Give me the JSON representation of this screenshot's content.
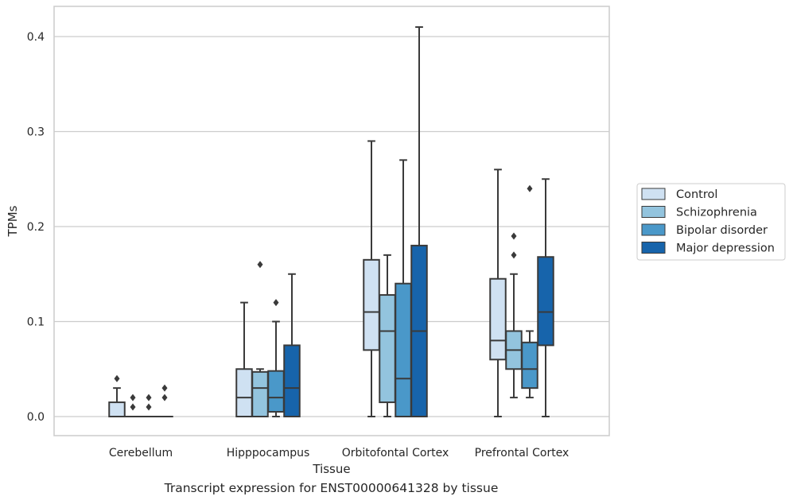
{
  "caption": "Transcript expression for ENST00000641328 by tissue",
  "chart_data": {
    "type": "box",
    "title": "",
    "xlabel": "Tissue",
    "ylabel": "TPMs",
    "ylim": [
      -0.02,
      0.43
    ],
    "yticks": [
      0.0,
      0.1,
      0.2,
      0.3,
      0.4
    ],
    "ytick_labels": [
      "0.0",
      "0.1",
      "0.2",
      "0.3",
      "0.4"
    ],
    "grid": "horizontal",
    "legend_position": "right",
    "categories": [
      "Cerebellum",
      "Hipppocampus",
      "Orbitofontal Cortex",
      "Prefrontal Cortex"
    ],
    "series": [
      {
        "name": "Control",
        "color": "#cfe1f2",
        "boxes": [
          {
            "min": 0.0,
            "q1": 0.0,
            "median": 0.0,
            "q3": 0.015,
            "max": 0.03,
            "outliers": [
              0.04
            ]
          },
          {
            "min": 0.0,
            "q1": 0.0,
            "median": 0.02,
            "q3": 0.05,
            "max": 0.12,
            "outliers": []
          },
          {
            "min": 0.0,
            "q1": 0.07,
            "median": 0.11,
            "q3": 0.165,
            "max": 0.29,
            "outliers": []
          },
          {
            "min": 0.0,
            "q1": 0.06,
            "median": 0.08,
            "q3": 0.145,
            "max": 0.26,
            "outliers": []
          }
        ]
      },
      {
        "name": "Schizophrenia",
        "color": "#93c4de",
        "boxes": [
          {
            "min": 0.0,
            "q1": 0.0,
            "median": 0.0,
            "q3": 0.0,
            "max": 0.0,
            "outliers": [
              0.01,
              0.02
            ]
          },
          {
            "min": 0.0,
            "q1": 0.0,
            "median": 0.03,
            "q3": 0.047,
            "max": 0.05,
            "outliers": [
              0.16
            ]
          },
          {
            "min": 0.0,
            "q1": 0.015,
            "median": 0.09,
            "q3": 0.128,
            "max": 0.17,
            "outliers": []
          },
          {
            "min": 0.02,
            "q1": 0.05,
            "median": 0.07,
            "q3": 0.09,
            "max": 0.15,
            "outliers": [
              0.17,
              0.19
            ]
          }
        ]
      },
      {
        "name": "Bipolar disorder",
        "color": "#4a98c9",
        "boxes": [
          {
            "min": 0.0,
            "q1": 0.0,
            "median": 0.0,
            "q3": 0.0,
            "max": 0.0,
            "outliers": [
              0.01,
              0.02
            ]
          },
          {
            "min": 0.0,
            "q1": 0.005,
            "median": 0.02,
            "q3": 0.048,
            "max": 0.1,
            "outliers": [
              0.12
            ]
          },
          {
            "min": 0.0,
            "q1": 0.0,
            "median": 0.04,
            "q3": 0.14,
            "max": 0.27,
            "outliers": []
          },
          {
            "min": 0.02,
            "q1": 0.03,
            "median": 0.05,
            "q3": 0.078,
            "max": 0.09,
            "outliers": [
              0.24
            ]
          }
        ]
      },
      {
        "name": "Major depression",
        "color": "#1764ab",
        "boxes": [
          {
            "min": 0.0,
            "q1": 0.0,
            "median": 0.0,
            "q3": 0.0,
            "max": 0.0,
            "outliers": [
              0.02,
              0.03
            ]
          },
          {
            "min": 0.0,
            "q1": 0.0,
            "median": 0.03,
            "q3": 0.075,
            "max": 0.15,
            "outliers": []
          },
          {
            "min": 0.0,
            "q1": 0.0,
            "median": 0.09,
            "q3": 0.18,
            "max": 0.41,
            "outliers": []
          },
          {
            "min": 0.0,
            "q1": 0.075,
            "median": 0.11,
            "q3": 0.168,
            "max": 0.25,
            "outliers": []
          }
        ]
      }
    ]
  }
}
